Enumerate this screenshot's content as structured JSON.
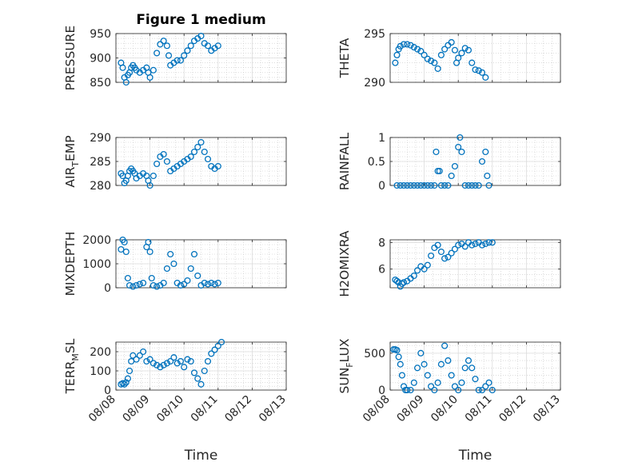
{
  "figure": {
    "title": "Figure 1 medium"
  },
  "chart_data": [
    {
      "type": "scatter",
      "ylabel": "PRESSURE",
      "xlabel": "",
      "ylim": [
        850,
        950
      ],
      "yticks": [
        850,
        900,
        950
      ],
      "ytick_labels": [
        "850",
        "900",
        "950"
      ],
      "xlim": [
        0,
        5
      ],
      "xticks": [
        0,
        1,
        2,
        3,
        4,
        5
      ],
      "xtick_labels": [],
      "points": [
        [
          0.15,
          890
        ],
        [
          0.2,
          880
        ],
        [
          0.25,
          860
        ],
        [
          0.3,
          850
        ],
        [
          0.35,
          865
        ],
        [
          0.4,
          870
        ],
        [
          0.45,
          880
        ],
        [
          0.5,
          885
        ],
        [
          0.55,
          880
        ],
        [
          0.6,
          875
        ],
        [
          0.7,
          870
        ],
        [
          0.8,
          875
        ],
        [
          0.9,
          880
        ],
        [
          0.95,
          870
        ],
        [
          1.0,
          860
        ],
        [
          1.1,
          875
        ],
        [
          1.2,
          910
        ],
        [
          1.3,
          928
        ],
        [
          1.4,
          935
        ],
        [
          1.5,
          925
        ],
        [
          1.55,
          905
        ],
        [
          1.6,
          885
        ],
        [
          1.7,
          890
        ],
        [
          1.8,
          895
        ],
        [
          1.9,
          895
        ],
        [
          2.0,
          905
        ],
        [
          2.1,
          915
        ],
        [
          2.2,
          925
        ],
        [
          2.3,
          935
        ],
        [
          2.4,
          940
        ],
        [
          2.5,
          945
        ],
        [
          2.6,
          930
        ],
        [
          2.7,
          925
        ],
        [
          2.8,
          915
        ],
        [
          2.9,
          920
        ],
        [
          3.0,
          925
        ]
      ]
    },
    {
      "type": "scatter",
      "ylabel": "THETA",
      "xlabel": "",
      "ylim": [
        290,
        295
      ],
      "yticks": [
        290,
        295
      ],
      "ytick_labels": [
        "290",
        "295"
      ],
      "xlim": [
        0,
        5
      ],
      "xticks": [
        0,
        1,
        2,
        3,
        4,
        5
      ],
      "xtick_labels": [],
      "points": [
        [
          0.15,
          292.0
        ],
        [
          0.2,
          292.8
        ],
        [
          0.25,
          293.4
        ],
        [
          0.3,
          293.7
        ],
        [
          0.4,
          293.9
        ],
        [
          0.5,
          293.9
        ],
        [
          0.6,
          293.8
        ],
        [
          0.7,
          293.6
        ],
        [
          0.8,
          293.4
        ],
        [
          0.9,
          293.2
        ],
        [
          1.0,
          292.8
        ],
        [
          1.1,
          292.4
        ],
        [
          1.2,
          292.2
        ],
        [
          1.3,
          292.0
        ],
        [
          1.4,
          291.4
        ],
        [
          1.5,
          292.8
        ],
        [
          1.6,
          293.4
        ],
        [
          1.7,
          293.8
        ],
        [
          1.8,
          294.1
        ],
        [
          1.9,
          293.3
        ],
        [
          1.95,
          292.0
        ],
        [
          2.0,
          292.5
        ],
        [
          2.1,
          293.0
        ],
        [
          2.2,
          293.5
        ],
        [
          2.3,
          293.3
        ],
        [
          2.4,
          292.0
        ],
        [
          2.5,
          291.3
        ],
        [
          2.6,
          291.2
        ],
        [
          2.7,
          291.0
        ],
        [
          2.8,
          290.5
        ]
      ]
    },
    {
      "type": "scatter",
      "ylabel": "AIR_TEMP",
      "xlabel": "",
      "ylim": [
        280,
        290
      ],
      "yticks": [
        280,
        285,
        290
      ],
      "ytick_labels": [
        "280",
        "285",
        "290"
      ],
      "xlim": [
        0,
        5
      ],
      "xticks": [
        0,
        1,
        2,
        3,
        4,
        5
      ],
      "xtick_labels": [],
      "points": [
        [
          0.15,
          282.5
        ],
        [
          0.2,
          282
        ],
        [
          0.25,
          280.5
        ],
        [
          0.3,
          281
        ],
        [
          0.35,
          282
        ],
        [
          0.4,
          283
        ],
        [
          0.45,
          283.5
        ],
        [
          0.5,
          283
        ],
        [
          0.55,
          282.5
        ],
        [
          0.6,
          281.5
        ],
        [
          0.7,
          282
        ],
        [
          0.8,
          282.5
        ],
        [
          0.9,
          282
        ],
        [
          0.95,
          281
        ],
        [
          1.0,
          280
        ],
        [
          1.1,
          282
        ],
        [
          1.2,
          284.5
        ],
        [
          1.3,
          286
        ],
        [
          1.4,
          286.5
        ],
        [
          1.5,
          285
        ],
        [
          1.6,
          283
        ],
        [
          1.7,
          283.5
        ],
        [
          1.8,
          284
        ],
        [
          1.9,
          284.5
        ],
        [
          2.0,
          285
        ],
        [
          2.1,
          285.5
        ],
        [
          2.2,
          286
        ],
        [
          2.3,
          287
        ],
        [
          2.4,
          288
        ],
        [
          2.5,
          289
        ],
        [
          2.6,
          287
        ],
        [
          2.7,
          285.5
        ],
        [
          2.8,
          284
        ],
        [
          2.9,
          283.5
        ],
        [
          3.0,
          284
        ]
      ]
    },
    {
      "type": "scatter",
      "ylabel": "RAINFALL",
      "xlabel": "",
      "ylim": [
        0,
        1
      ],
      "yticks": [
        0,
        0.5,
        1
      ],
      "ytick_labels": [
        "0",
        "0.5",
        "1"
      ],
      "xlim": [
        0,
        5
      ],
      "xticks": [
        0,
        1,
        2,
        3,
        4,
        5
      ],
      "xtick_labels": [],
      "points": [
        [
          0.2,
          0
        ],
        [
          0.3,
          0
        ],
        [
          0.4,
          0
        ],
        [
          0.5,
          0
        ],
        [
          0.6,
          0
        ],
        [
          0.7,
          0
        ],
        [
          0.8,
          0
        ],
        [
          0.9,
          0
        ],
        [
          1.0,
          0
        ],
        [
          1.1,
          0
        ],
        [
          1.2,
          0
        ],
        [
          1.3,
          0
        ],
        [
          1.35,
          0.7
        ],
        [
          1.4,
          0.3
        ],
        [
          1.45,
          0.3
        ],
        [
          1.5,
          0
        ],
        [
          1.6,
          0
        ],
        [
          1.7,
          0
        ],
        [
          1.8,
          0.2
        ],
        [
          1.9,
          0.4
        ],
        [
          2.0,
          0.8
        ],
        [
          2.05,
          1.0
        ],
        [
          2.1,
          0.7
        ],
        [
          2.2,
          0
        ],
        [
          2.3,
          0
        ],
        [
          2.4,
          0
        ],
        [
          2.5,
          0
        ],
        [
          2.6,
          0
        ],
        [
          2.7,
          0.5
        ],
        [
          2.8,
          0.7
        ],
        [
          2.85,
          0.2
        ],
        [
          2.9,
          0
        ]
      ]
    },
    {
      "type": "scatter",
      "ylabel": "MIXDEPTH",
      "xlabel": "",
      "ylim": [
        0,
        2000
      ],
      "yticks": [
        0,
        1000,
        2000
      ],
      "ytick_labels": [
        "0",
        "1000",
        "2000"
      ],
      "xlim": [
        0,
        5
      ],
      "xticks": [
        0,
        1,
        2,
        3,
        4,
        5
      ],
      "xtick_labels": [],
      "points": [
        [
          0.15,
          1600
        ],
        [
          0.2,
          2000
        ],
        [
          0.25,
          1900
        ],
        [
          0.3,
          1500
        ],
        [
          0.35,
          400
        ],
        [
          0.4,
          100
        ],
        [
          0.5,
          50
        ],
        [
          0.6,
          100
        ],
        [
          0.7,
          150
        ],
        [
          0.8,
          200
        ],
        [
          0.9,
          1700
        ],
        [
          0.95,
          1900
        ],
        [
          1.0,
          1500
        ],
        [
          1.05,
          400
        ],
        [
          1.1,
          100
        ],
        [
          1.2,
          50
        ],
        [
          1.3,
          100
        ],
        [
          1.4,
          200
        ],
        [
          1.5,
          800
        ],
        [
          1.6,
          1400
        ],
        [
          1.7,
          1000
        ],
        [
          1.8,
          200
        ],
        [
          1.9,
          100
        ],
        [
          2.0,
          150
        ],
        [
          2.1,
          300
        ],
        [
          2.2,
          800
        ],
        [
          2.3,
          1400
        ],
        [
          2.4,
          500
        ],
        [
          2.5,
          100
        ],
        [
          2.6,
          200
        ],
        [
          2.7,
          150
        ],
        [
          2.8,
          200
        ],
        [
          2.9,
          150
        ],
        [
          3.0,
          200
        ]
      ]
    },
    {
      "type": "scatter",
      "ylabel": "H2OMIXRA",
      "xlabel": "",
      "ylim": [
        4.6,
        8.2
      ],
      "yticks": [
        6,
        8
      ],
      "ytick_labels": [
        "6",
        "8"
      ],
      "xlim": [
        0,
        5
      ],
      "xticks": [
        0,
        1,
        2,
        3,
        4,
        5
      ],
      "xtick_labels": [],
      "points": [
        [
          0.15,
          5.2
        ],
        [
          0.2,
          5.1
        ],
        [
          0.25,
          5.0
        ],
        [
          0.3,
          4.7
        ],
        [
          0.35,
          4.9
        ],
        [
          0.4,
          5.0
        ],
        [
          0.5,
          5.1
        ],
        [
          0.6,
          5.3
        ],
        [
          0.7,
          5.5
        ],
        [
          0.8,
          5.9
        ],
        [
          0.9,
          6.2
        ],
        [
          1.0,
          6.0
        ],
        [
          1.1,
          6.3
        ],
        [
          1.2,
          7.0
        ],
        [
          1.3,
          7.6
        ],
        [
          1.4,
          7.8
        ],
        [
          1.5,
          7.3
        ],
        [
          1.6,
          6.8
        ],
        [
          1.7,
          6.9
        ],
        [
          1.8,
          7.2
        ],
        [
          1.9,
          7.5
        ],
        [
          2.0,
          7.8
        ],
        [
          2.1,
          7.9
        ],
        [
          2.2,
          7.7
        ],
        [
          2.3,
          8.0
        ],
        [
          2.4,
          7.8
        ],
        [
          2.5,
          7.9
        ],
        [
          2.6,
          8.0
        ],
        [
          2.7,
          7.8
        ],
        [
          2.8,
          7.9
        ],
        [
          2.9,
          8.0
        ],
        [
          3.0,
          8.0
        ]
      ]
    },
    {
      "type": "scatter",
      "ylabel": "TERR_MSL",
      "xlabel": "Time",
      "ylim": [
        0,
        250
      ],
      "yticks": [
        0,
        100,
        200
      ],
      "ytick_labels": [
        "0",
        "100",
        "200"
      ],
      "xlim": [
        0,
        5
      ],
      "xticks": [
        0,
        1,
        2,
        3,
        4,
        5
      ],
      "xtick_labels": [
        "08/08",
        "08/09",
        "08/10",
        "08/11",
        "08/12",
        "08/13"
      ],
      "points": [
        [
          0.15,
          30
        ],
        [
          0.2,
          35
        ],
        [
          0.25,
          30
        ],
        [
          0.3,
          40
        ],
        [
          0.35,
          60
        ],
        [
          0.4,
          100
        ],
        [
          0.45,
          150
        ],
        [
          0.5,
          180
        ],
        [
          0.6,
          160
        ],
        [
          0.7,
          180
        ],
        [
          0.8,
          200
        ],
        [
          0.9,
          150
        ],
        [
          1.0,
          160
        ],
        [
          1.1,
          140
        ],
        [
          1.2,
          130
        ],
        [
          1.3,
          120
        ],
        [
          1.4,
          130
        ],
        [
          1.5,
          140
        ],
        [
          1.6,
          150
        ],
        [
          1.7,
          170
        ],
        [
          1.8,
          140
        ],
        [
          1.9,
          150
        ],
        [
          2.0,
          120
        ],
        [
          2.1,
          160
        ],
        [
          2.2,
          150
        ],
        [
          2.3,
          90
        ],
        [
          2.4,
          60
        ],
        [
          2.5,
          30
        ],
        [
          2.6,
          100
        ],
        [
          2.7,
          150
        ],
        [
          2.8,
          190
        ],
        [
          2.9,
          210
        ],
        [
          3.0,
          230
        ],
        [
          3.1,
          250
        ]
      ]
    },
    {
      "type": "scatter",
      "ylabel": "SUN_FLUX",
      "xlabel": "Time",
      "ylim": [
        0,
        650
      ],
      "yticks": [
        0,
        500
      ],
      "ytick_labels": [
        "0",
        "500"
      ],
      "xlim": [
        0,
        5
      ],
      "xticks": [
        0,
        1,
        2,
        3,
        4,
        5
      ],
      "xtick_labels": [
        "08/08",
        "08/09",
        "08/10",
        "08/11",
        "08/12",
        "08/13"
      ],
      "points": [
        [
          0.1,
          550
        ],
        [
          0.15,
          550
        ],
        [
          0.2,
          540
        ],
        [
          0.25,
          450
        ],
        [
          0.3,
          350
        ],
        [
          0.35,
          200
        ],
        [
          0.4,
          50
        ],
        [
          0.45,
          0
        ],
        [
          0.5,
          0
        ],
        [
          0.6,
          0
        ],
        [
          0.7,
          100
        ],
        [
          0.8,
          300
        ],
        [
          0.9,
          500
        ],
        [
          1.0,
          350
        ],
        [
          1.1,
          200
        ],
        [
          1.2,
          50
        ],
        [
          1.3,
          0
        ],
        [
          1.4,
          100
        ],
        [
          1.5,
          350
        ],
        [
          1.6,
          600
        ],
        [
          1.7,
          400
        ],
        [
          1.8,
          200
        ],
        [
          1.9,
          50
        ],
        [
          2.0,
          0
        ],
        [
          2.1,
          100
        ],
        [
          2.2,
          300
        ],
        [
          2.3,
          400
        ],
        [
          2.4,
          300
        ],
        [
          2.5,
          150
        ],
        [
          2.6,
          0
        ],
        [
          2.7,
          0
        ],
        [
          2.8,
          50
        ],
        [
          2.9,
          100
        ],
        [
          3.0,
          0
        ]
      ]
    }
  ]
}
